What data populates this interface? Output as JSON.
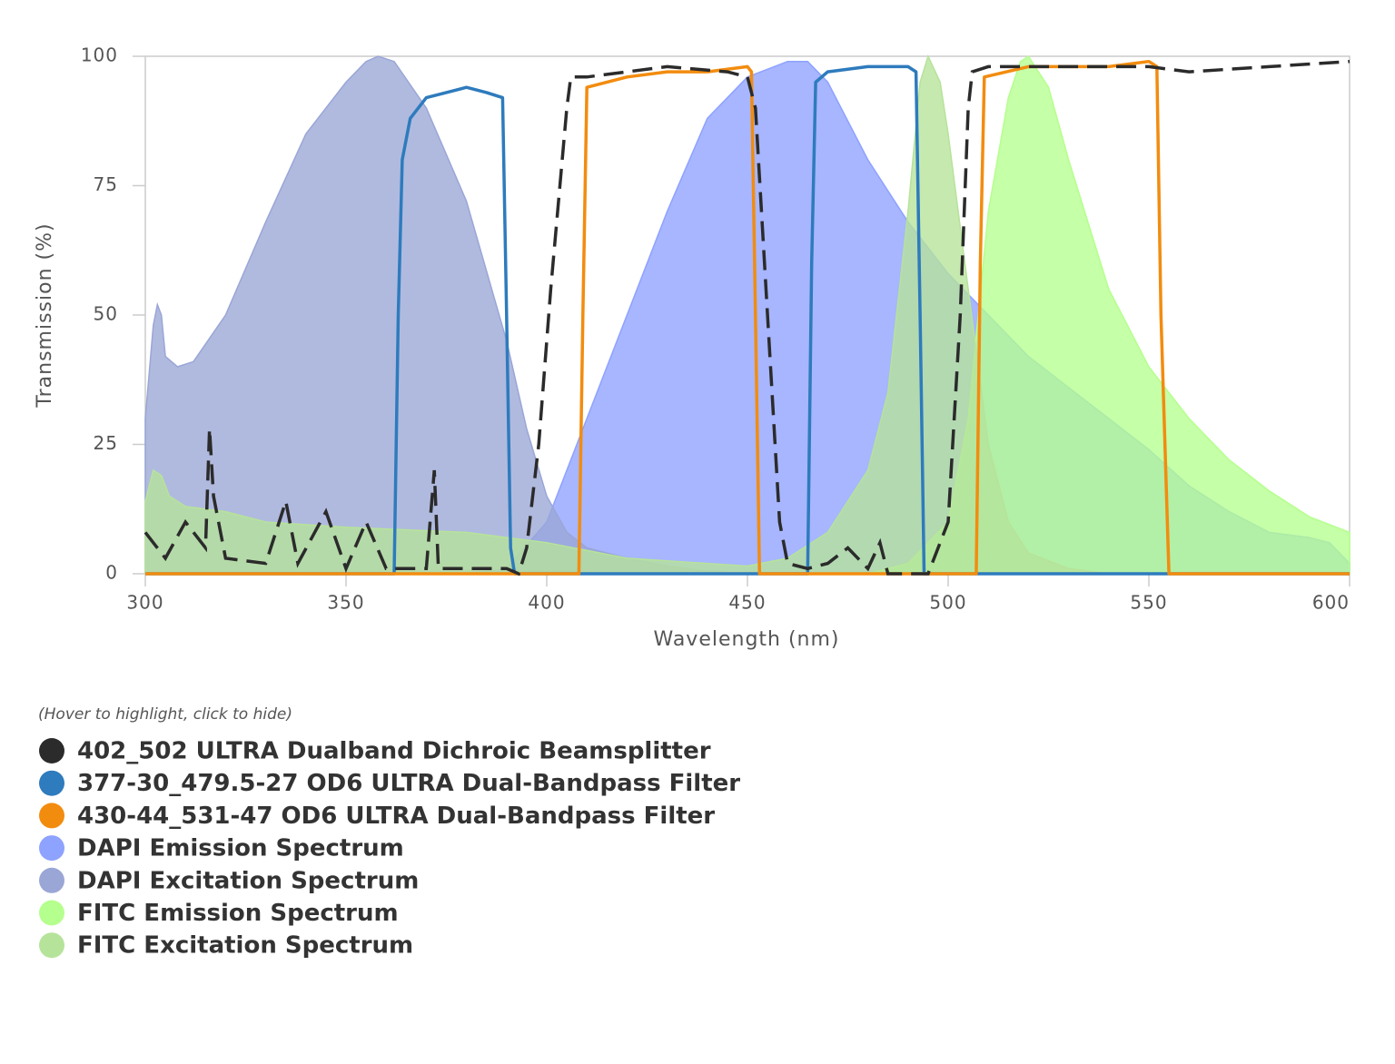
{
  "chart_data": {
    "type": "line",
    "x_label": "Wavelength (nm)",
    "y_label": "Transmission (%)",
    "xlim": [
      300,
      600
    ],
    "ylim": [
      0,
      100
    ],
    "xticks": [
      300,
      350,
      400,
      450,
      500,
      550,
      600
    ],
    "yticks": [
      0,
      25,
      50,
      75,
      100
    ],
    "legend": "bottom-left",
    "legend_note": "(Hover to highlight, click to hide)",
    "series": [
      {
        "name": "402_502 ULTRA Dualband Dichroic Beamsplitter",
        "color": "#2b2b2b",
        "style": "dashed",
        "x": [
          300,
          305,
          310,
          315,
          316,
          317,
          320,
          330,
          335,
          338,
          345,
          350,
          355,
          360,
          370,
          372,
          373,
          380,
          390,
          393,
          395,
          398,
          401,
          405,
          406,
          410,
          420,
          430,
          445,
          450,
          452,
          455,
          458,
          460,
          465,
          470,
          475,
          480,
          483,
          485,
          490,
          495,
          500,
          503,
          505,
          506,
          510,
          530,
          550,
          560,
          580,
          600
        ],
        "values": [
          8,
          3,
          10,
          5,
          28,
          15,
          3,
          2,
          14,
          2,
          12,
          1,
          10,
          1,
          1,
          20,
          1,
          1,
          1,
          0,
          5,
          25,
          55,
          90,
          96,
          96,
          97,
          98,
          97,
          96,
          90,
          50,
          10,
          2,
          1,
          2,
          5,
          1,
          6,
          0,
          0,
          0,
          10,
          50,
          90,
          97,
          98,
          98,
          98,
          97,
          98,
          99
        ]
      },
      {
        "name": "377-30_479.5-27 OD6 ULTRA Dual-Bandpass Filter",
        "color": "#2e7bbd",
        "style": "line",
        "x": [
          300,
          362,
          363,
          364,
          366,
          370,
          375,
          380,
          385,
          389,
          390,
          391,
          392,
          465,
          466,
          467,
          470,
          480,
          490,
          492,
          493,
          494,
          600
        ],
        "values": [
          0,
          0,
          50,
          80,
          88,
          92,
          93,
          94,
          93,
          92,
          50,
          5,
          0,
          0,
          60,
          95,
          97,
          98,
          98,
          97,
          50,
          0,
          0
        ]
      },
      {
        "name": "430-44_531-47 OD6 ULTRA Dual-Bandpass Filter",
        "color": "#f28c0f",
        "style": "line",
        "x": [
          300,
          408,
          409,
          410,
          420,
          430,
          440,
          450,
          451,
          452,
          453,
          507,
          508,
          509,
          520,
          540,
          550,
          552,
          553,
          555,
          600
        ],
        "values": [
          0,
          0,
          50,
          94,
          96,
          97,
          97,
          98,
          97,
          50,
          0,
          0,
          60,
          96,
          98,
          98,
          99,
          98,
          50,
          0,
          0
        ]
      },
      {
        "name": "DAPI Emission Spectrum",
        "color": "#8ea2ff",
        "style": "area",
        "x": [
          380,
          390,
          400,
          410,
          420,
          430,
          440,
          450,
          460,
          465,
          470,
          480,
          490,
          500,
          510,
          520,
          530,
          540,
          550,
          560,
          570,
          580,
          590,
          595,
          600
        ],
        "values": [
          0,
          1,
          10,
          30,
          50,
          70,
          88,
          96,
          99,
          99,
          95,
          80,
          68,
          58,
          50,
          42,
          36,
          30,
          24,
          17,
          12,
          8,
          7,
          6,
          2
        ]
      },
      {
        "name": "DAPI Excitation Spectrum",
        "color": "#9aa6d6",
        "style": "area",
        "x": [
          300,
          302,
          303,
          304,
          305,
          308,
          312,
          320,
          330,
          340,
          350,
          355,
          358,
          362,
          370,
          380,
          390,
          395,
          400,
          405,
          410,
          420,
          430,
          440,
          450
        ],
        "values": [
          30,
          48,
          52,
          50,
          42,
          40,
          41,
          50,
          68,
          85,
          95,
          99,
          100,
          99,
          90,
          72,
          45,
          28,
          15,
          8,
          5,
          3,
          1.5,
          0.5,
          0
        ]
      },
      {
        "name": "FITC Emission Spectrum",
        "color": "#b5ff8e",
        "style": "area",
        "x": [
          480,
          490,
          500,
          505,
          510,
          515,
          518,
          520,
          525,
          530,
          540,
          550,
          560,
          570,
          580,
          590,
          600
        ],
        "values": [
          0,
          2,
          10,
          30,
          70,
          92,
          99,
          100,
          94,
          80,
          55,
          40,
          30,
          22,
          16,
          11,
          8
        ]
      },
      {
        "name": "FITC Excitation Spectrum",
        "color": "#b6e39a",
        "style": "area",
        "x": [
          300,
          302,
          304,
          306,
          310,
          320,
          330,
          350,
          380,
          400,
          420,
          440,
          450,
          460,
          470,
          480,
          485,
          490,
          493,
          495,
          498,
          500,
          505,
          510,
          515,
          520,
          530,
          540
        ],
        "values": [
          14,
          20,
          19,
          15,
          13,
          12,
          10,
          9,
          8,
          6,
          3,
          2,
          1.5,
          3,
          8,
          20,
          35,
          70,
          95,
          100,
          95,
          85,
          55,
          25,
          10,
          4,
          1,
          0
        ]
      }
    ]
  }
}
